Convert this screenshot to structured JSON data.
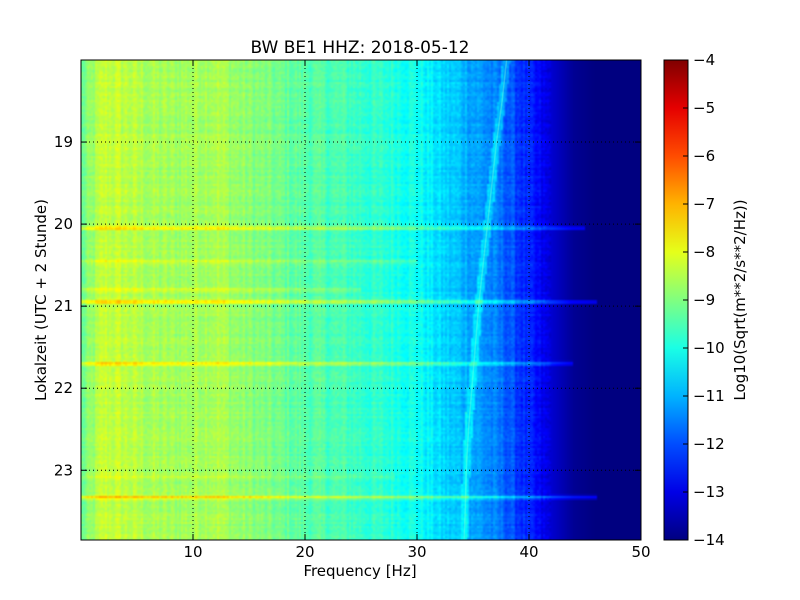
{
  "chart_data": {
    "type": "heatmap",
    "title": "BW BE1 HHZ: 2018-05-12",
    "xlabel": "Frequency [Hz]",
    "ylabel": "Lokalzeit (UTC + 2 Stunde)",
    "xlim": [
      0,
      50
    ],
    "ylim": [
      18.0,
      23.85
    ],
    "y_inverted": true,
    "x_ticks": [
      10,
      20,
      30,
      40,
      50
    ],
    "x_tick_labels": [
      "10",
      "20",
      "30",
      "40",
      "50"
    ],
    "y_ticks": [
      19,
      20,
      21,
      22,
      23
    ],
    "y_tick_labels": [
      "19",
      "20",
      "21",
      "22",
      "23"
    ],
    "grid": true,
    "colormap": "jet",
    "colorbar": {
      "label": "Log10(Sqrt(m**2/s**2/Hz))",
      "range": [
        -14,
        -4
      ],
      "ticks": [
        -4,
        -5,
        -6,
        -7,
        -8,
        -9,
        -10,
        -11,
        -12,
        -13,
        -14
      ],
      "tick_labels": [
        "−4",
        "−5",
        "−6",
        "−7",
        "−8",
        "−9",
        "−10",
        "−11",
        "−12",
        "−13",
        "−14"
      ]
    },
    "spectrum_profile": {
      "frequency_hz": [
        0,
        2,
        4,
        6,
        8,
        10,
        12,
        14,
        16,
        18,
        20,
        22,
        24,
        26,
        28,
        30,
        32,
        34,
        36,
        38,
        40,
        42,
        44,
        46,
        48,
        50
      ],
      "log10_amplitude": [
        -9.3,
        -8.3,
        -8.4,
        -8.6,
        -8.7,
        -8.6,
        -8.5,
        -8.8,
        -9.0,
        -9.2,
        -9.4,
        -9.5,
        -9.6,
        -9.8,
        -9.9,
        -10.1,
        -10.6,
        -10.9,
        -11.3,
        -11.8,
        -12.5,
        -13.2,
        -13.8,
        -14.0,
        -14.0,
        -14.0
      ]
    },
    "broadband_events": [
      {
        "time_h": 20.05,
        "delta_log10": 1.4,
        "max_freq_hz": 45
      },
      {
        "time_h": 20.45,
        "delta_log10": 0.6,
        "max_freq_hz": 30
      },
      {
        "time_h": 20.8,
        "delta_log10": 0.8,
        "max_freq_hz": 25
      },
      {
        "time_h": 20.95,
        "delta_log10": 1.5,
        "max_freq_hz": 46
      },
      {
        "time_h": 21.7,
        "delta_log10": 1.2,
        "max_freq_hz": 44
      },
      {
        "time_h": 23.08,
        "delta_log10": 0.5,
        "max_freq_hz": 28
      },
      {
        "time_h": 23.33,
        "delta_log10": 1.4,
        "max_freq_hz": 46
      }
    ],
    "drifting_line": {
      "time_h": [
        18.0,
        18.5,
        19.0,
        19.5,
        20.0,
        20.5,
        21.0,
        21.5,
        22.0,
        22.5,
        23.0,
        23.5,
        23.85
      ],
      "frequency_hz": [
        38.0,
        37.6,
        37.1,
        36.7,
        36.3,
        35.9,
        35.5,
        35.2,
        34.9,
        34.6,
        34.4,
        34.3,
        34.2
      ]
    }
  }
}
